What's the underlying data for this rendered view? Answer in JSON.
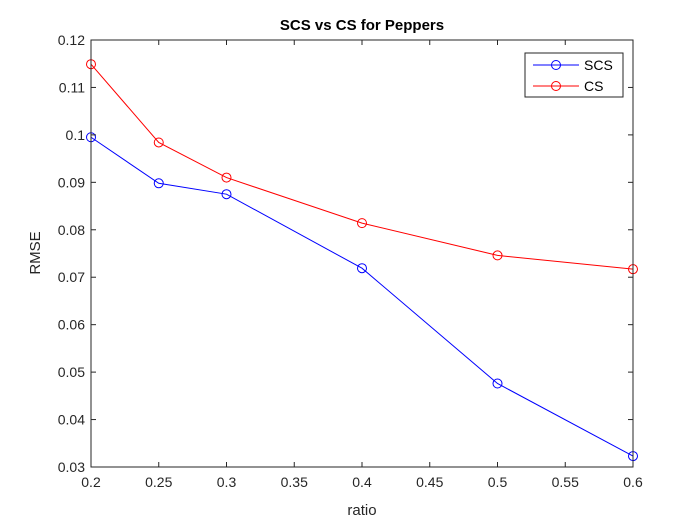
{
  "chart_data": {
    "type": "line",
    "title": "SCS vs CS for Peppers",
    "xlabel": "ratio",
    "ylabel": "RMSE",
    "xlim": [
      0.2,
      0.6
    ],
    "ylim": [
      0.03,
      0.12
    ],
    "x_ticks": [
      0.2,
      0.25,
      0.3,
      0.35,
      0.4,
      0.45,
      0.5,
      0.55,
      0.6
    ],
    "x_tick_labels": [
      "0.2",
      "0.25",
      "0.3",
      "0.35",
      "0.4",
      "0.45",
      "0.5",
      "0.55",
      "0.6"
    ],
    "y_ticks": [
      0.03,
      0.04,
      0.05,
      0.06,
      0.07,
      0.08,
      0.09,
      0.1,
      0.11,
      0.12
    ],
    "y_tick_labels": [
      "0.03",
      "0.04",
      "0.05",
      "0.06",
      "0.07",
      "0.08",
      "0.09",
      "0.1",
      "0.11",
      "0.12"
    ],
    "grid": false,
    "legend_position": "top-right",
    "x": [
      0.2,
      0.25,
      0.3,
      0.4,
      0.5,
      0.6
    ],
    "series": [
      {
        "name": "SCS",
        "color": "#0000ff",
        "marker": "circle",
        "values": [
          0.0995,
          0.0898,
          0.0875,
          0.0719,
          0.0476,
          0.0323
        ]
      },
      {
        "name": "CS",
        "color": "#ff0000",
        "marker": "circle",
        "values": [
          0.1149,
          0.0984,
          0.091,
          0.0814,
          0.0746,
          0.0717
        ]
      }
    ]
  }
}
